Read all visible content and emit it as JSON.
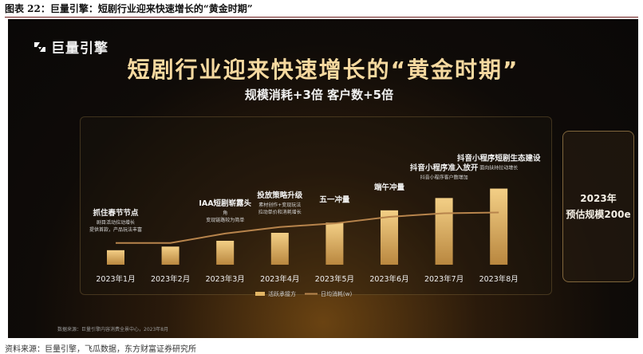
{
  "caption": "图表 22：巨量引擎：短剧行业迎来快速增长的“黄金时期”",
  "logo": {
    "text": "巨量引擎",
    "icon": "brand-logo-icon"
  },
  "slide_title": "短剧行业迎来快速增长的“黄金时期”",
  "slide_subtitle": "规模消耗+3倍  客户数+5倍",
  "estimate": {
    "line1": "2023年",
    "line2": "预估规模200e"
  },
  "chart_data": {
    "type": "bar",
    "categories": [
      "2023年1月",
      "2023年2月",
      "2023年3月",
      "2023年4月",
      "2023年5月",
      "2023年6月",
      "2023年7月",
      "2023年8月"
    ],
    "series": [
      {
        "name": "活跃承接方",
        "kind": "bar",
        "values": [
          20,
          25,
          33,
          44,
          58,
          75,
          92,
          105
        ]
      },
      {
        "name": "日均消耗(w)",
        "kind": "line",
        "values": [
          30,
          30,
          43,
          52,
          57,
          66,
          71,
          72
        ]
      }
    ],
    "ylim": [
      0,
      110
    ],
    "legend_position": "bottom",
    "annotations": [
      {
        "category": "2023年1月",
        "title": "抓住春节节点",
        "sub": [
          "剧目活动拉动增长",
          "提供首款，产品玩法丰富"
        ]
      },
      {
        "category": "2023年3月",
        "title": "IAA短剧崭露头",
        "sub": [
          "角",
          "变现链路较为简单"
        ]
      },
      {
        "category": "2023年4月",
        "title": "投放策略升级",
        "sub": [
          "素材创作+变现玩法",
          "拉动单价和消耗增长"
        ]
      },
      {
        "category": "2023年5月",
        "title": "五一冲量",
        "sub": []
      },
      {
        "category": "2023年6月",
        "title": "端午冲量",
        "sub": []
      },
      {
        "category": "2023年7月",
        "title": "抖音小程序准入放开",
        "sub": [
          "抖音小程序客户数增加"
        ]
      },
      {
        "category": "2023年8月",
        "title": "抖音小程序短剧生态建设",
        "sub": [
          "面向扶持拉动增长"
        ]
      }
    ],
    "colors": {
      "bar": "#e3b665",
      "line": "#b7844c",
      "text": "#f0f0f0"
    }
  },
  "source_note": "数据来源：巨量引擎内容消费全景中心，2023年8月",
  "footer": "资料来源：巨量引擎，飞瓜数据，东方财富证券研究所"
}
